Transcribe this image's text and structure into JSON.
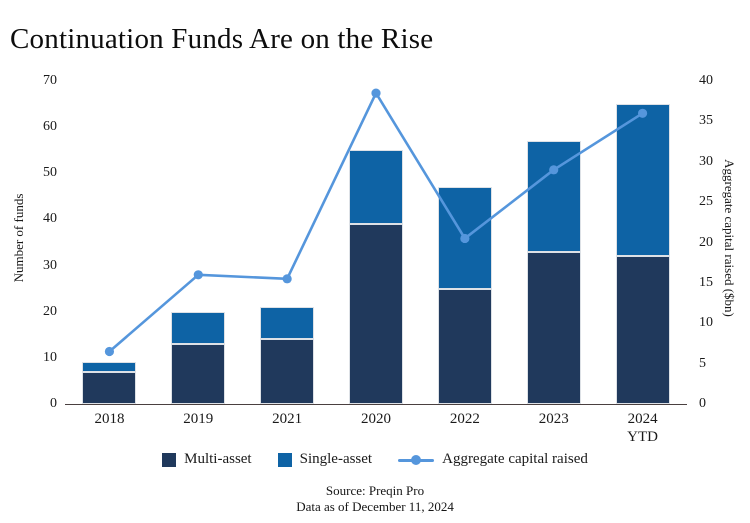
{
  "title": "Continuation Funds Are on the Rise",
  "chart_data": {
    "type": "bar",
    "subtype": "stacked-bars-with-line-overlay",
    "categories": [
      "2018",
      "2019",
      "2021",
      "2020",
      "2022",
      "2023",
      "2024\nYTD"
    ],
    "series": [
      {
        "name": "Multi-asset",
        "type": "bar",
        "axis": "left",
        "values": [
          7,
          13,
          14,
          39,
          25,
          33,
          32
        ]
      },
      {
        "name": "Single-asset",
        "type": "bar",
        "axis": "left",
        "values": [
          2,
          7,
          7,
          16,
          22,
          24,
          33
        ]
      },
      {
        "name": "Aggregate capital raised",
        "type": "line",
        "axis": "right",
        "values": [
          6.5,
          16,
          15.5,
          38.5,
          20.5,
          29,
          36
        ]
      }
    ],
    "totals_funds": [
      9,
      20,
      21,
      55,
      47,
      57,
      65
    ],
    "ylabel_left": "Number of funds",
    "ylabel_right": "Aggregate capital raised ($bn)",
    "yticks_left": [
      0,
      10,
      20,
      30,
      40,
      50,
      60,
      70
    ],
    "yticks_right": [
      0,
      5,
      10,
      15,
      20,
      25,
      30,
      35,
      40
    ],
    "ylim_left": [
      0,
      70
    ],
    "ylim_right": [
      0,
      40
    ],
    "grid": false,
    "legend_position": "bottom",
    "colors": {
      "multi_asset": "#20395C",
      "single_asset": "#0E63A5",
      "line": "#5596DC"
    }
  },
  "footer": {
    "source": "Source: Preqin Pro",
    "as_of": "Data as of December 11, 2024"
  }
}
